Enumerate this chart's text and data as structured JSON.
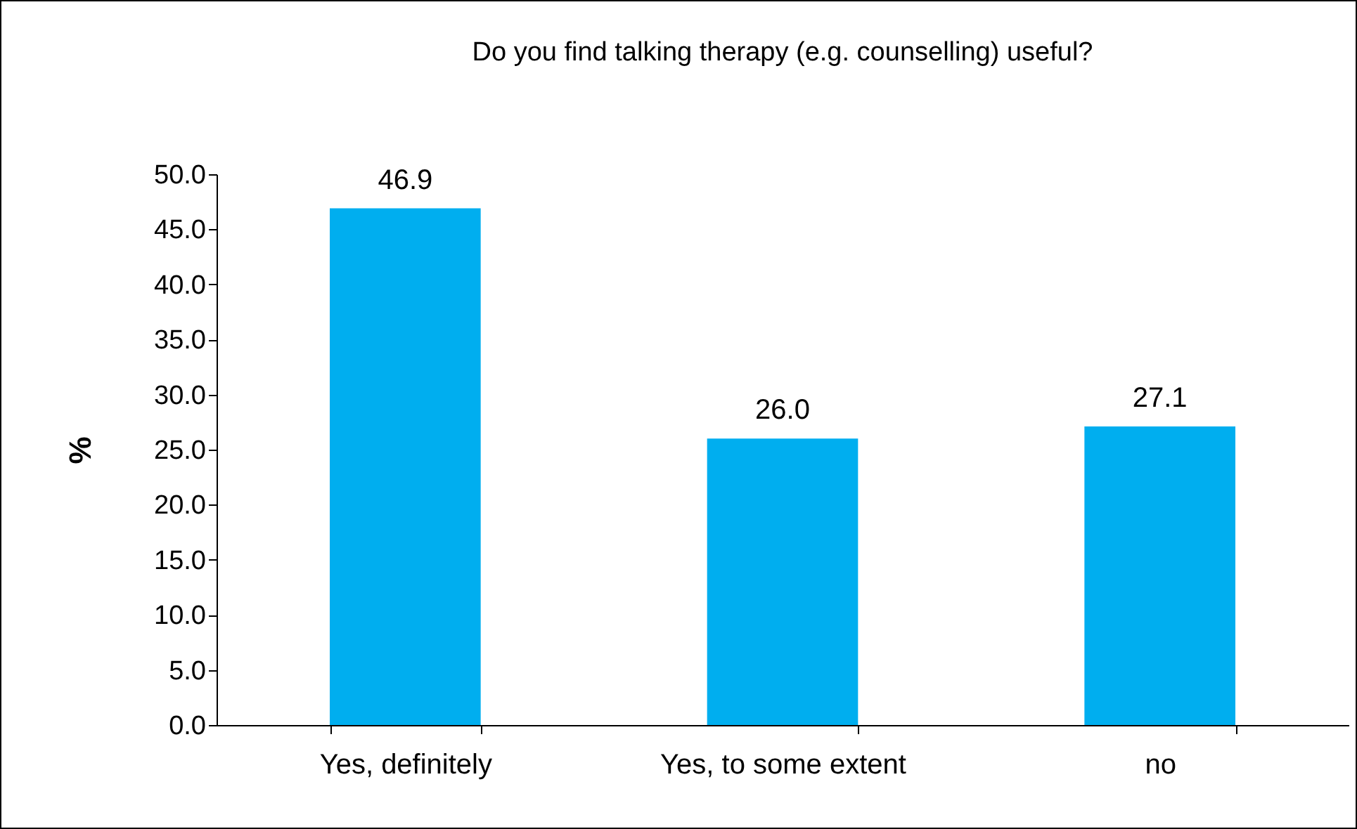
{
  "chart_data": {
    "type": "bar",
    "title": "Do you find talking therapy (e.g. counselling) useful?",
    "ylabel": "%",
    "categories": [
      "Yes, definitely",
      "Yes, to some extent",
      "no"
    ],
    "values": [
      46.9,
      26.0,
      27.1
    ],
    "value_labels": [
      "46.9",
      "26.0",
      "27.1"
    ],
    "color": "#00aeef",
    "ylim": [
      0,
      50
    ],
    "yticks": [
      {
        "value": 0,
        "label": "0.0"
      },
      {
        "value": 5,
        "label": "5.0"
      },
      {
        "value": 10,
        "label": "10.0"
      },
      {
        "value": 15,
        "label": "15.0"
      },
      {
        "value": 20,
        "label": "20.0"
      },
      {
        "value": 25,
        "label": "25.0"
      },
      {
        "value": 30,
        "label": "30.0"
      },
      {
        "value": 35,
        "label": "35.0"
      },
      {
        "value": 40,
        "label": "40.0"
      },
      {
        "value": 45,
        "label": "45.0"
      },
      {
        "value": 50,
        "label": "50.0"
      }
    ],
    "grid": false
  }
}
